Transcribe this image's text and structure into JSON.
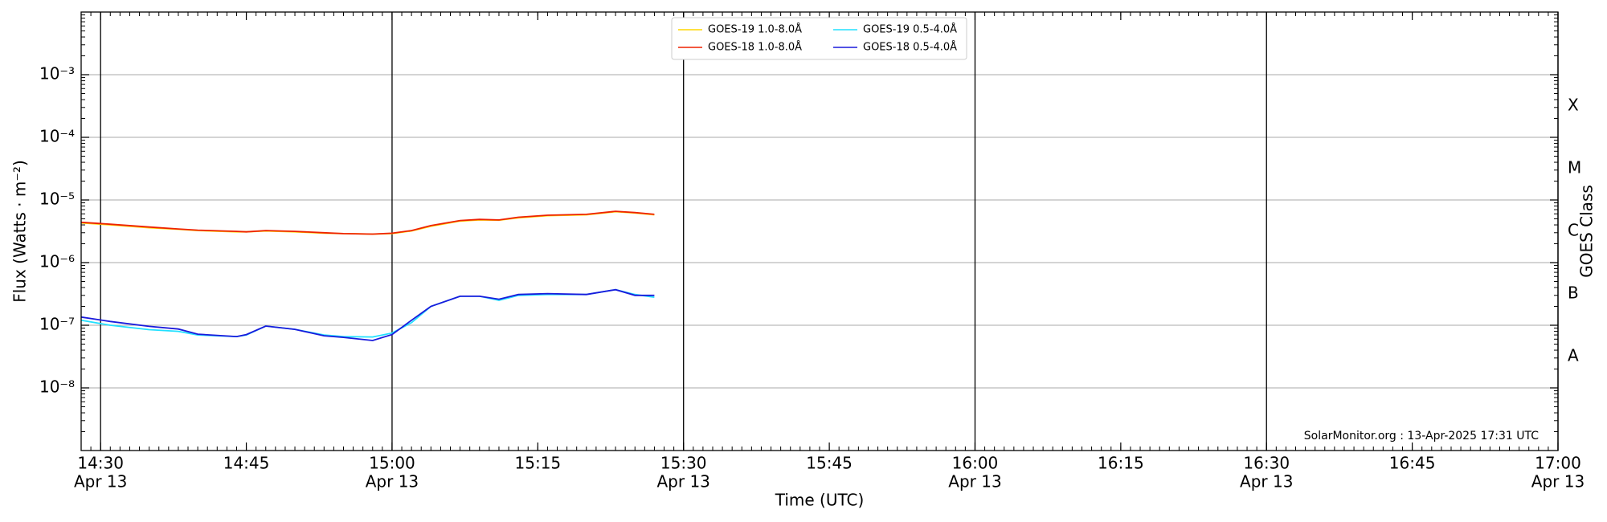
{
  "chart_data": {
    "type": "line",
    "x_label": "Time (UTC)",
    "y_label": "Flux (Watts · m⁻²)",
    "y2_label": "GOES Class",
    "annotation": "SolarMonitor.org : 13-Apr-2025 17:31 UTC",
    "log_y": true,
    "grid": true,
    "xlim": [
      "14:28",
      "17:00"
    ],
    "ylim": [
      1e-09,
      0.01
    ],
    "xticks": [
      {
        "value": "14:30",
        "label": [
          "14:30",
          "Apr 13"
        ]
      },
      {
        "value": "14:45",
        "label": [
          "14:45"
        ]
      },
      {
        "value": "15:00",
        "label": [
          "15:00",
          "Apr 13"
        ]
      },
      {
        "value": "15:15",
        "label": [
          "15:15"
        ]
      },
      {
        "value": "15:30",
        "label": [
          "15:30",
          "Apr 13"
        ]
      },
      {
        "value": "15:45",
        "label": [
          "15:45"
        ]
      },
      {
        "value": "16:00",
        "label": [
          "16:00",
          "Apr 13"
        ]
      },
      {
        "value": "16:15",
        "label": [
          "16:15"
        ]
      },
      {
        "value": "16:30",
        "label": [
          "16:30",
          "Apr 13"
        ]
      },
      {
        "value": "16:45",
        "label": [
          "16:45"
        ]
      },
      {
        "value": "17:00",
        "label": [
          "17:00",
          "Apr 13"
        ]
      }
    ],
    "yticks": [
      {
        "value": 1e-08,
        "label": "10⁻⁸"
      },
      {
        "value": 1e-07,
        "label": "10⁻⁷"
      },
      {
        "value": 1e-06,
        "label": "10⁻⁶"
      },
      {
        "value": 1e-05,
        "label": "10⁻⁵"
      },
      {
        "value": 0.0001,
        "label": "10⁻⁴"
      },
      {
        "value": 0.001,
        "label": "10⁻³"
      }
    ],
    "goes_classes": [
      {
        "label": "A",
        "value": 1e-08
      },
      {
        "label": "B",
        "value": 1e-07
      },
      {
        "label": "C",
        "value": 1e-06
      },
      {
        "label": "M",
        "value": 1e-05
      },
      {
        "label": "X",
        "value": 0.0001
      }
    ],
    "x": [
      "14:28",
      "14:31",
      "14:35",
      "14:38",
      "14:40",
      "14:44",
      "14:45",
      "14:47",
      "14:50",
      "14:53",
      "14:55",
      "14:58",
      "15:00",
      "15:02",
      "15:04",
      "15:07",
      "15:09",
      "15:11",
      "15:13",
      "15:16",
      "15:20",
      "15:23",
      "15:25",
      "15:27"
    ],
    "series": [
      {
        "name": "GOES-19 1.0-8.0Å",
        "color": "#ffd700",
        "values": [
          4.3e-06,
          4e-06,
          3.6e-06,
          3.4e-06,
          3.25e-06,
          3.1e-06,
          3.1e-06,
          3.2e-06,
          3.1e-06,
          2.95e-06,
          2.9e-06,
          2.85e-06,
          2.9e-06,
          3.2e-06,
          3.8e-06,
          4.6e-06,
          4.8e-06,
          4.75e-06,
          5.2e-06,
          5.6e-06,
          5.8e-06,
          6.5e-06,
          6.2e-06,
          5.8e-06
        ]
      },
      {
        "name": "GOES-18 1.0-8.0Å",
        "color": "#ee2200",
        "values": [
          4.4e-06,
          4.1e-06,
          3.7e-06,
          3.45e-06,
          3.3e-06,
          3.15e-06,
          3.1e-06,
          3.25e-06,
          3.15e-06,
          3e-06,
          2.9e-06,
          2.85e-06,
          2.95e-06,
          3.25e-06,
          3.9e-06,
          4.7e-06,
          4.9e-06,
          4.8e-06,
          5.3e-06,
          5.7e-06,
          5.9e-06,
          6.6e-06,
          6.3e-06,
          5.9e-06
        ]
      },
      {
        "name": "GOES-19 0.5-4.0Å",
        "color": "#22e0ff",
        "values": [
          1.2e-07,
          1e-07,
          8.5e-08,
          8e-08,
          7e-08,
          6.6e-08,
          7e-08,
          9.7e-08,
          8.6e-08,
          7e-08,
          6.6e-08,
          6.5e-08,
          7.5e-08,
          1.1e-07,
          2e-07,
          2.9e-07,
          2.9e-07,
          2.5e-07,
          3e-07,
          3.1e-07,
          3.1e-07,
          3.7e-07,
          3.1e-07,
          2.8e-07
        ]
      },
      {
        "name": "GOES-18 0.5-4.0Å",
        "color": "#1a1adc",
        "values": [
          1.35e-07,
          1.15e-07,
          9.6e-08,
          8.7e-08,
          7.2e-08,
          6.6e-08,
          7.1e-08,
          9.7e-08,
          8.6e-08,
          6.8e-08,
          6.4e-08,
          5.7e-08,
          7.1e-08,
          1.2e-07,
          2e-07,
          2.9e-07,
          2.9e-07,
          2.6e-07,
          3.1e-07,
          3.2e-07,
          3.1e-07,
          3.7e-07,
          3e-07,
          3e-07
        ]
      }
    ]
  }
}
